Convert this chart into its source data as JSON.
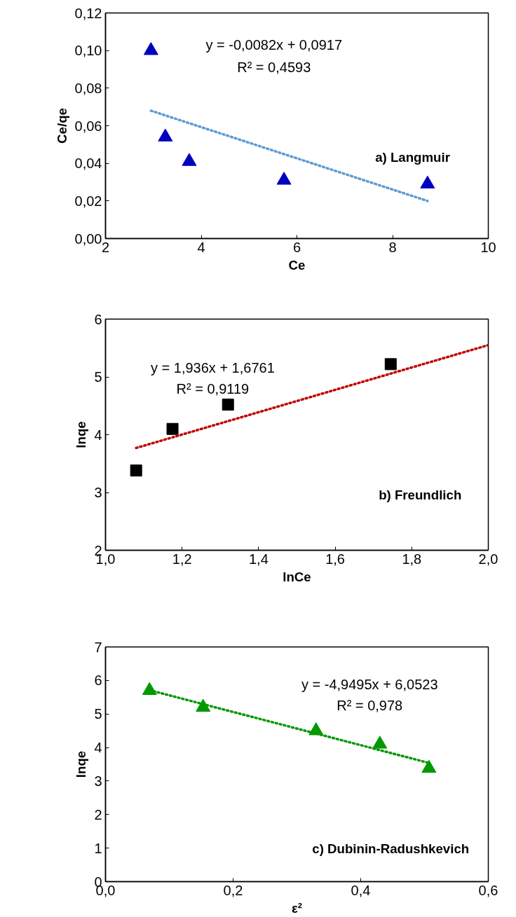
{
  "chart_data": [
    {
      "type": "scatter",
      "xlabel": "Ce",
      "ylabel": "Ce/qe",
      "xlim": [
        2,
        10
      ],
      "ylim": [
        0,
        0.12
      ],
      "xticks": [
        2,
        4,
        6,
        8,
        10
      ],
      "yticks": [
        {
          "value": 0,
          "label": "0,00"
        },
        {
          "value": 0.02,
          "label": "0,02"
        },
        {
          "value": 0.04,
          "label": "0,04"
        },
        {
          "value": 0.06,
          "label": "0,06"
        },
        {
          "value": 0.08,
          "label": "0,08"
        },
        {
          "value": 0.1,
          "label": "0,10"
        },
        {
          "value": 0.12,
          "label": "0,12"
        }
      ],
      "grid": false,
      "series": [
        {
          "marker": "triangle",
          "color": "#0000c0",
          "x": [
            2.95,
            3.25,
            3.75,
            5.73,
            8.73
          ],
          "values": [
            0.1,
            0.054,
            0.041,
            0.031,
            0.029
          ]
        },
        {
          "type": "line",
          "line_style": "dotted",
          "color": "#5b9bd5",
          "x": [
            2.95,
            8.73
          ],
          "values": [
            0.068,
            0.02
          ]
        }
      ],
      "annotations": [
        "y = -0,0082x + 0,0917",
        "R² = 0,4593",
        "a) Langmuir"
      ]
    },
    {
      "type": "scatter",
      "xlabel": "lnCe",
      "ylabel": "lnqe",
      "xlim": [
        1.0,
        2.0
      ],
      "ylim": [
        2,
        6
      ],
      "xticks": [
        {
          "value": 1.0,
          "label": "1,0"
        },
        {
          "value": 1.2,
          "label": "1,2"
        },
        {
          "value": 1.4,
          "label": "1,4"
        },
        {
          "value": 1.6,
          "label": "1,6"
        },
        {
          "value": 1.8,
          "label": "1,8"
        },
        {
          "value": 2.0,
          "label": "2,0"
        }
      ],
      "yticks": [
        2,
        3,
        4,
        5,
        6
      ],
      "grid": false,
      "series": [
        {
          "marker": "square",
          "color": "#000000",
          "x": [
            1.08,
            1.175,
            1.32,
            1.745
          ],
          "values": [
            3.38,
            4.1,
            4.52,
            5.22
          ]
        },
        {
          "type": "line",
          "line_style": "dotted",
          "color": "#c00000",
          "x": [
            1.08,
            2.0
          ],
          "values": [
            3.77,
            5.55
          ]
        }
      ],
      "annotations": [
        "y = 1,936x + 1,6761",
        "R² = 0,9119",
        "b) Freundlich"
      ]
    },
    {
      "type": "scatter",
      "xlabel": "ε²",
      "ylabel": "lnqe",
      "xlim": [
        0,
        0.6
      ],
      "ylim": [
        0,
        7
      ],
      "xticks": [
        {
          "value": 0,
          "label": "0,0"
        },
        {
          "value": 0.2,
          "label": "0,2"
        },
        {
          "value": 0.4,
          "label": "0,4"
        },
        {
          "value": 0.6,
          "label": "0,6"
        }
      ],
      "yticks": [
        0,
        1,
        2,
        3,
        4,
        5,
        6,
        7
      ],
      "grid": false,
      "series": [
        {
          "marker": "triangle",
          "color": "#009900",
          "x": [
            0.069,
            0.153,
            0.33,
            0.43,
            0.507
          ],
          "values": [
            5.7,
            5.2,
            4.5,
            4.1,
            3.38
          ]
        },
        {
          "type": "line",
          "line_style": "dotted",
          "color": "#009900",
          "x": [
            0.069,
            0.507
          ],
          "values": [
            5.71,
            3.54
          ]
        }
      ],
      "annotations": [
        "y = -4,9495x + 6,0523",
        "R² = 0,978",
        "c) Dubinin-Radushkevich"
      ]
    }
  ]
}
